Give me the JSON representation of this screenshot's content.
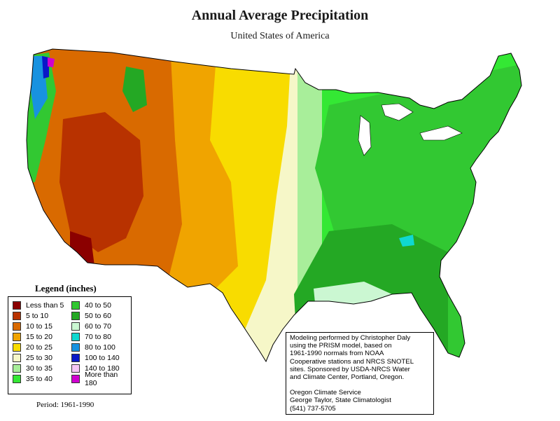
{
  "title": "Annual Average Precipitation",
  "subtitle": "United States of America",
  "legend": {
    "title": "Legend (inches)",
    "items": [
      {
        "label": "Less than 5",
        "color": "#8b0000"
      },
      {
        "label": "5 to 10",
        "color": "#b83200"
      },
      {
        "label": "10 to 15",
        "color": "#d96a00"
      },
      {
        "label": "15 to 20",
        "color": "#f0a400"
      },
      {
        "label": "20 to 25",
        "color": "#f8dc00"
      },
      {
        "label": "25 to 30",
        "color": "#f6f7c8"
      },
      {
        "label": "30 to 35",
        "color": "#a8ee9a"
      },
      {
        "label": "35 to 40",
        "color": "#34e834"
      },
      {
        "label": "40 to 50",
        "color": "#32c832"
      },
      {
        "label": "50 to 60",
        "color": "#24a824"
      },
      {
        "label": "60 to 70",
        "color": "#cbf7d2"
      },
      {
        "label": "70 to 80",
        "color": "#10d8d0"
      },
      {
        "label": "80 to 100",
        "color": "#1892e0"
      },
      {
        "label": "100 to 140",
        "color": "#0a18c8"
      },
      {
        "label": "140 to 180",
        "color": "#f6c6f6"
      },
      {
        "label": "More than 180",
        "color": "#d000d0"
      }
    ]
  },
  "period": "Period: 1961-1990",
  "credit": {
    "lines1": [
      "Modeling performed by Christopher Daly",
      "using the PRISM model, based on",
      "1961-1990 normals from NOAA",
      "Cooperative stations and NRCS SNOTEL",
      "sites.  Sponsored by USDA-NRCS Water",
      "and Climate Center, Portland, Oregon."
    ],
    "lines2": [
      "Oregon Climate Service",
      "George Taylor, State Climatologist",
      "(541) 737-5705"
    ]
  }
}
